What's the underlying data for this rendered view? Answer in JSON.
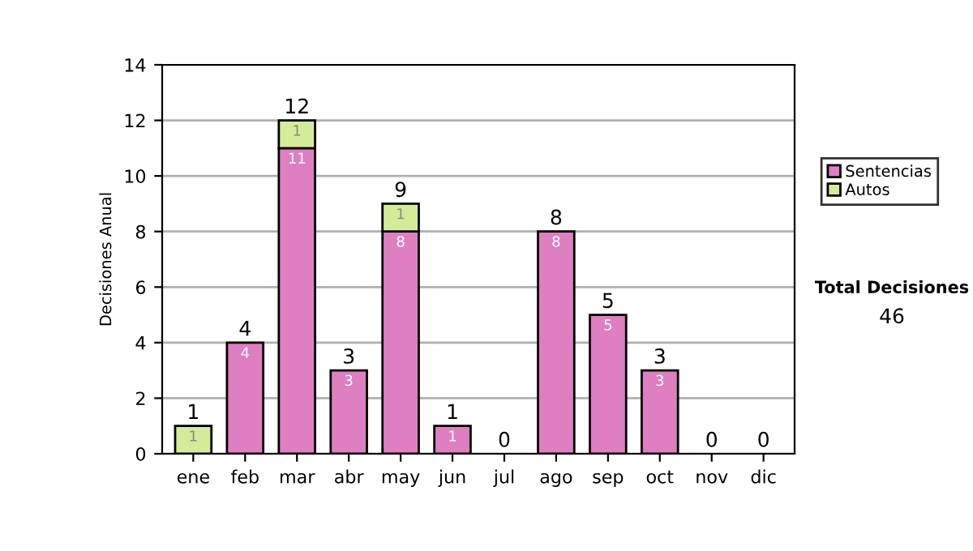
{
  "chart_data": {
    "type": "bar",
    "stacked": true,
    "ylabel": "Decisiones Anual",
    "categories": [
      "ene",
      "feb",
      "mar",
      "abr",
      "may",
      "jun",
      "jul",
      "ago",
      "sep",
      "oct",
      "nov",
      "dic"
    ],
    "series": [
      {
        "name": "Sentencias",
        "color": "#dd7fc0",
        "values": [
          0,
          4,
          11,
          3,
          8,
          1,
          0,
          8,
          5,
          3,
          0,
          0
        ],
        "value_labels": [
          null,
          "4",
          "11",
          "3",
          "8",
          "1",
          null,
          "8",
          "5",
          "3",
          null,
          null
        ]
      },
      {
        "name": "Autos",
        "color": "#d4ec9a",
        "values": [
          1,
          0,
          1,
          0,
          1,
          0,
          0,
          0,
          0,
          0,
          0,
          0
        ],
        "value_labels": [
          "1",
          null,
          "1",
          null,
          "1",
          null,
          null,
          null,
          null,
          null,
          null,
          null
        ]
      }
    ],
    "totals": [
      "1",
      "4",
      "12",
      "3",
      "9",
      "1",
      "0",
      "8",
      "5",
      "3",
      "0",
      "0"
    ],
    "ylim": [
      0,
      14
    ],
    "yticks": [
      0,
      2,
      4,
      6,
      8,
      10,
      12,
      14
    ],
    "grid": "y",
    "legend": "right",
    "annotations": [
      "Total Decisiones",
      "46"
    ]
  }
}
